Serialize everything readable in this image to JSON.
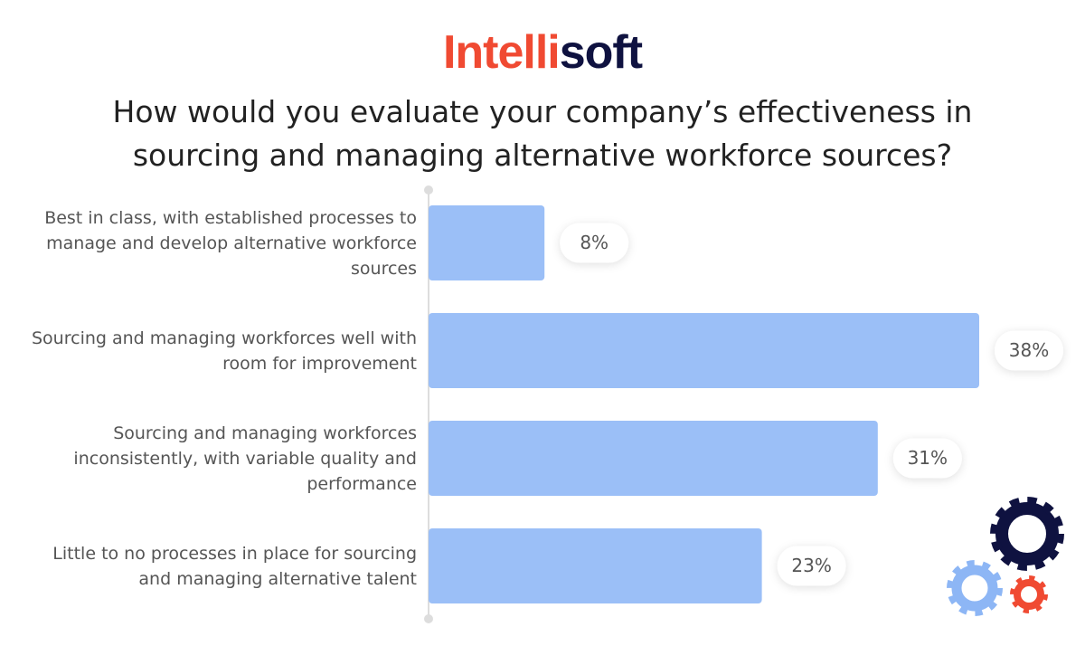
{
  "logo": [
    "Intelli",
    "soft"
  ],
  "chart_data": {
    "type": "bar",
    "orientation": "horizontal",
    "title": "How would you evaluate your company’s effectiveness in sourcing and managing alternative workforce sources?",
    "categories": [
      "Best in class, with established processes to manage and develop alternative workforce sources",
      "Sourcing and managing workforces well with room for improvement",
      "Sourcing and managing workforces inconsistently, with variable quality and performance",
      "Little to no processes in place for sourcing and managing alternative talent"
    ],
    "values": [
      8,
      38,
      31,
      23
    ],
    "value_labels": [
      "8%",
      "38%",
      "31%",
      "23%"
    ],
    "color": "#9bbff7"
  }
}
